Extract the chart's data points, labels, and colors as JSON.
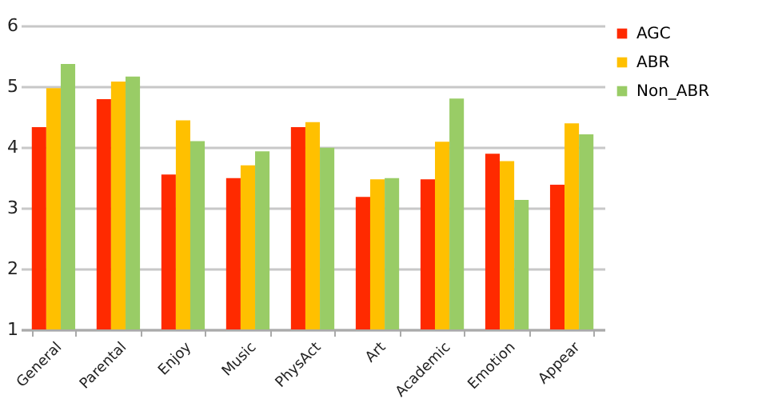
{
  "chart_data": {
    "type": "bar",
    "categories": [
      "General",
      "Parental",
      "Enjoy",
      "Music",
      "PhysAct",
      "Art",
      "Academic",
      "Emotion",
      "Appear"
    ],
    "series": [
      {
        "name": "AGC",
        "color": "#ff2a00",
        "values": [
          4.33,
          4.79,
          3.55,
          3.49,
          4.33,
          3.18,
          3.47,
          3.89,
          3.38
        ]
      },
      {
        "name": "ABR",
        "color": "#ffc000",
        "values": [
          4.97,
          5.08,
          4.44,
          3.7,
          4.41,
          3.47,
          4.09,
          3.77,
          4.39
        ]
      },
      {
        "name": "Non_ABR",
        "color": "#99cc66",
        "values": [
          5.37,
          5.16,
          4.1,
          3.93,
          3.99,
          3.49,
          4.8,
          3.13,
          4.21
        ]
      }
    ],
    "ylim": [
      1,
      6
    ],
    "yticks": [
      1,
      2,
      3,
      4,
      5,
      6
    ],
    "grid": "y",
    "legend": "right"
  }
}
